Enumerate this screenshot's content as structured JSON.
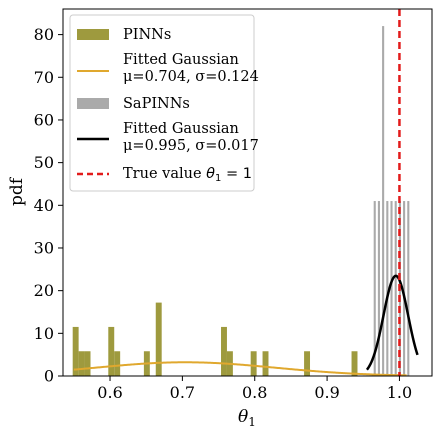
{
  "chart_data": {
    "type": "histogram",
    "ylabel": "pdf",
    "xlabel": "θ₁",
    "xlabel_base": "θ",
    "xlabel_sub": "1",
    "xlim": [
      0.535,
      1.045
    ],
    "ylim": [
      0,
      86
    ],
    "xticks": [
      0.6,
      0.7,
      0.8,
      0.9,
      1.0
    ],
    "xtick_labels": [
      "0.6",
      "0.7",
      "0.8",
      "0.9",
      "1.0"
    ],
    "yticks": [
      0,
      10,
      20,
      30,
      40,
      50,
      60,
      70,
      80
    ],
    "ytick_labels": [
      "0",
      "10",
      "20",
      "30",
      "40",
      "50",
      "60",
      "70",
      "80"
    ],
    "grid": false,
    "legend_position": "top-left",
    "colors": {
      "pinns_hist": "#9e9a3e",
      "pinns_fit": "#e0a82e",
      "sapinns_hist": "#aaaaaa",
      "sapinns_fit": "#000000",
      "true_value": "#e21b1b"
    },
    "pinns_bins": {
      "bin_width": 0.0082,
      "lefts": [
        0.5484,
        0.5566,
        0.5648,
        0.5976,
        0.6058,
        0.6468,
        0.6632,
        0.7534,
        0.7616,
        0.7944,
        0.8108,
        0.8682,
        0.9338
      ],
      "values": [
        11.5,
        5.8,
        5.8,
        11.5,
        5.8,
        5.8,
        17.2,
        11.5,
        5.8,
        5.8,
        5.8,
        5.8,
        5.8
      ]
    },
    "sapinns_bins": {
      "bin_width": 0.0029,
      "lefts": [
        0.9644,
        0.9702,
        0.976,
        0.9818,
        0.9876,
        0.9934,
        0.9992,
        1.005,
        1.0108
      ],
      "values": [
        41,
        41,
        82,
        41,
        41,
        41,
        41,
        41,
        41
      ]
    },
    "series": [
      {
        "name": "PINNs",
        "kind": "histogram"
      },
      {
        "name": "Fitted Gaussian μ=0.704, σ=0.124",
        "kind": "gaussian",
        "mu": 0.704,
        "sigma": 0.124,
        "x_range": [
          0.55,
          1.01
        ]
      },
      {
        "name": "SaPINNs",
        "kind": "histogram"
      },
      {
        "name": "Fitted Gaussian μ=0.995, σ=0.017",
        "kind": "gaussian",
        "mu": 0.995,
        "sigma": 0.017,
        "x_range": [
          0.955,
          1.025
        ]
      },
      {
        "name": "True value θ₁ = 1",
        "kind": "vline",
        "x": 1.0
      }
    ],
    "legend": {
      "pinns": "PINNs",
      "fit1_line1": "Fitted Gaussian",
      "fit1_line2": "μ=0.704, σ=0.124",
      "sapinns": "SaPINNs",
      "fit2_line1": "Fitted Gaussian",
      "fit2_line2": "μ=0.995, σ=0.017",
      "true_prefix": "True value ",
      "true_math": "θ",
      "true_sub": "1",
      "true_suffix": " = 1"
    }
  }
}
